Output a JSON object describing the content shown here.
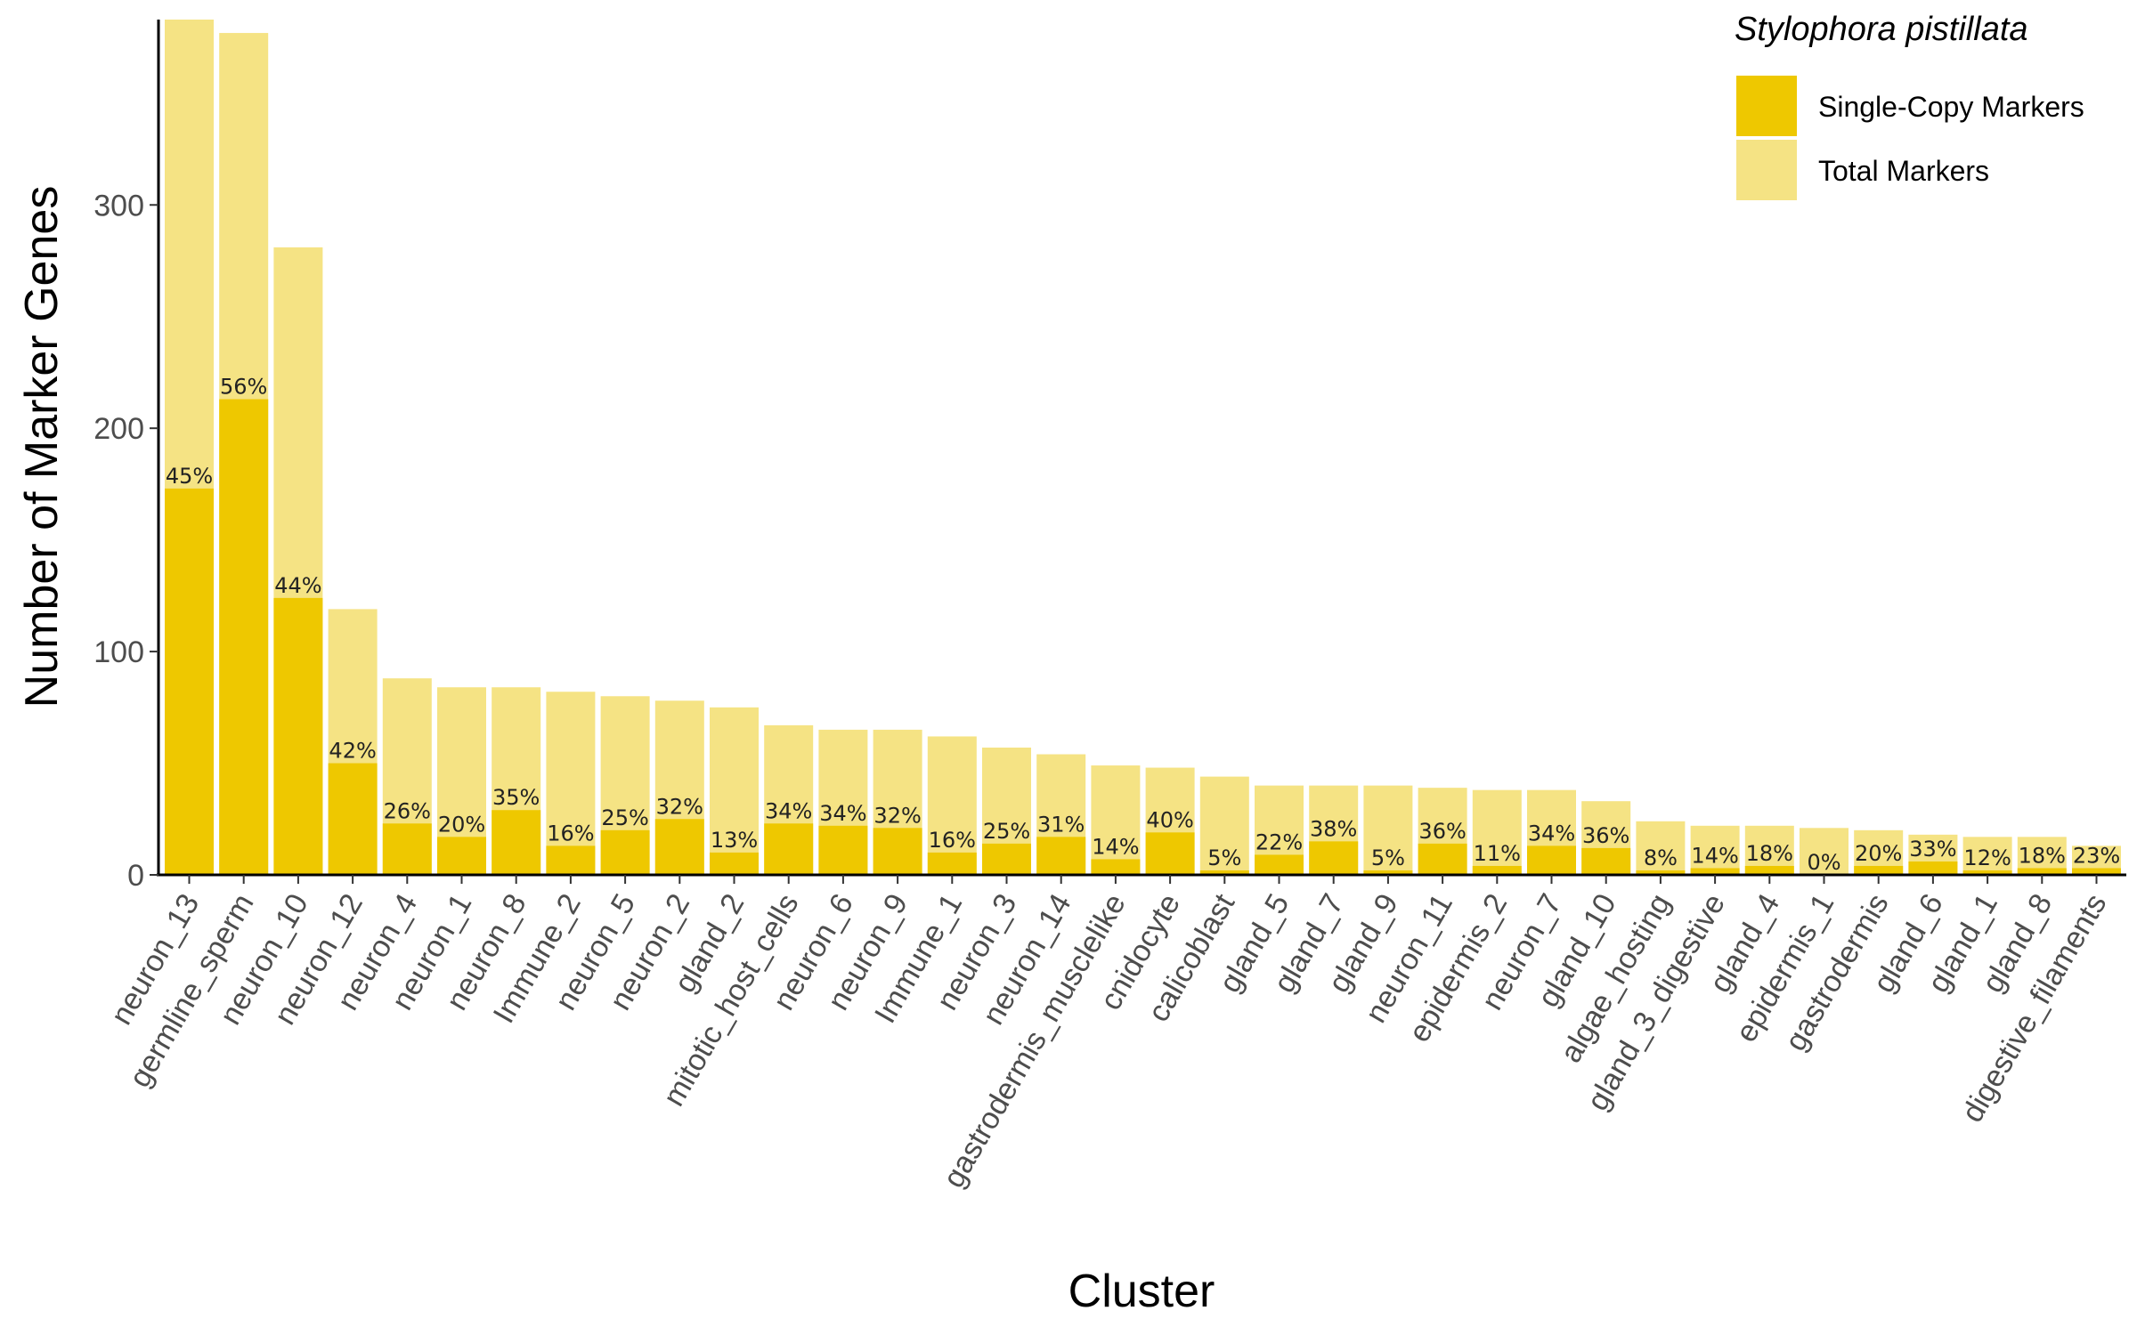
{
  "chart_data": {
    "type": "bar",
    "title": "",
    "xlabel": "Cluster",
    "ylabel": "Number of Marker Genes",
    "ylim": [
      0,
      383
    ],
    "yticks": [
      0,
      100,
      200,
      300
    ],
    "grid": false,
    "legend": {
      "title": "Stylophora pistillata",
      "placement": "top-right",
      "entries": [
        "Single-Copy Markers",
        "Total Markers"
      ]
    },
    "colors": {
      "single_copy": "#EEC800",
      "total": "#F5E384"
    },
    "categories": [
      "neuron_13",
      "germline_sperm",
      "neuron_10",
      "neuron_12",
      "neuron_4",
      "neuron_1",
      "neuron_8",
      "Immune_2",
      "neuron_5",
      "neuron_2",
      "gland_2",
      "mitotic_host_cells",
      "neuron_6",
      "neuron_9",
      "Immune_1",
      "neuron_3",
      "neuron_14",
      "gastrodermis_musclelike",
      "cnidocyte",
      "calicoblast",
      "gland_5",
      "gland_7",
      "gland_9",
      "neuron_11",
      "epidermis_2",
      "neuron_7",
      "gland_10",
      "algae_hosting",
      "gland_3_digestive",
      "gland_4",
      "epidermis_1",
      "gastrodermis",
      "gland_6",
      "gland_1",
      "gland_8",
      "digestive_filaments"
    ],
    "series": [
      {
        "name": "Total Markers",
        "values": [
          383,
          377,
          281,
          119,
          88,
          84,
          84,
          82,
          80,
          78,
          75,
          67,
          65,
          65,
          62,
          57,
          54,
          49,
          48,
          44,
          40,
          40,
          40,
          39,
          38,
          38,
          33,
          24,
          22,
          22,
          21,
          20,
          18,
          17,
          17,
          13
        ]
      },
      {
        "name": "Single-Copy Markers",
        "values": [
          173,
          213,
          124,
          50,
          23,
          17,
          29,
          13,
          20,
          25,
          10,
          23,
          22,
          21,
          10,
          14,
          17,
          7,
          19,
          2,
          9,
          15,
          2,
          14,
          4,
          13,
          12,
          2,
          3,
          4,
          0,
          4,
          6,
          2,
          3,
          3
        ]
      }
    ],
    "data_labels": [
      "45%",
      "56%",
      "44%",
      "42%",
      "26%",
      "20%",
      "35%",
      "16%",
      "25%",
      "32%",
      "13%",
      "34%",
      "34%",
      "32%",
      "16%",
      "25%",
      "31%",
      "14%",
      "40%",
      "5%",
      "22%",
      "38%",
      "5%",
      "36%",
      "11%",
      "34%",
      "36%",
      "8%",
      "14%",
      "18%",
      "0%",
      "20%",
      "33%",
      "12%",
      "18%",
      "23%"
    ]
  }
}
